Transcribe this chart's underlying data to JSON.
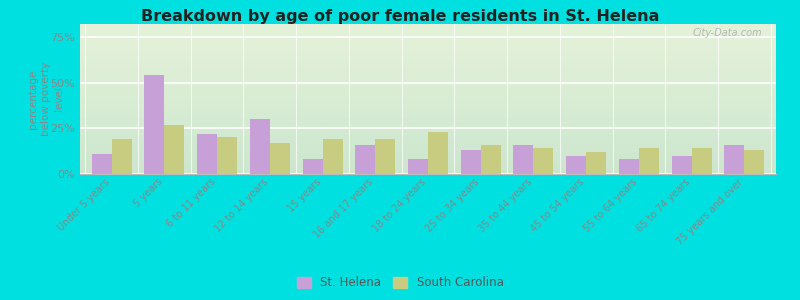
{
  "title": "Breakdown by age of poor female residents in St. Helena",
  "categories": [
    "Under 5 years",
    "5 years",
    "6 to 11 years",
    "12 to 14 years",
    "15 years",
    "16 and 17 years",
    "18 to 24 years",
    "25 to 34 years",
    "35 to 44 years",
    "45 to 54 years",
    "55 to 64 years",
    "65 to 74 years",
    "75 years and over"
  ],
  "st_helena": [
    11,
    54,
    22,
    30,
    8,
    16,
    8,
    13,
    16,
    10,
    8,
    10,
    16
  ],
  "south_carolina": [
    19,
    27,
    20,
    17,
    19,
    19,
    23,
    16,
    14,
    12,
    14,
    14,
    13
  ],
  "st_helena_color": "#c8a0d8",
  "south_carolina_color": "#c8cc80",
  "plot_bg_color": "#eef5e8",
  "title_color": "#222222",
  "ylabel": "percentage\nbelow poverty\nlevel",
  "yticks": [
    0,
    25,
    50,
    75
  ],
  "ytick_labels": [
    "0%",
    "25%",
    "50%",
    "75%"
  ],
  "bar_width": 0.38,
  "legend_st_helena": "St. Helena",
  "legend_south_carolina": "South Carolina",
  "watermark": "City-Data.com",
  "outer_bg": "#00e0e0",
  "tick_color": "#888888",
  "ylim": [
    0,
    82
  ]
}
